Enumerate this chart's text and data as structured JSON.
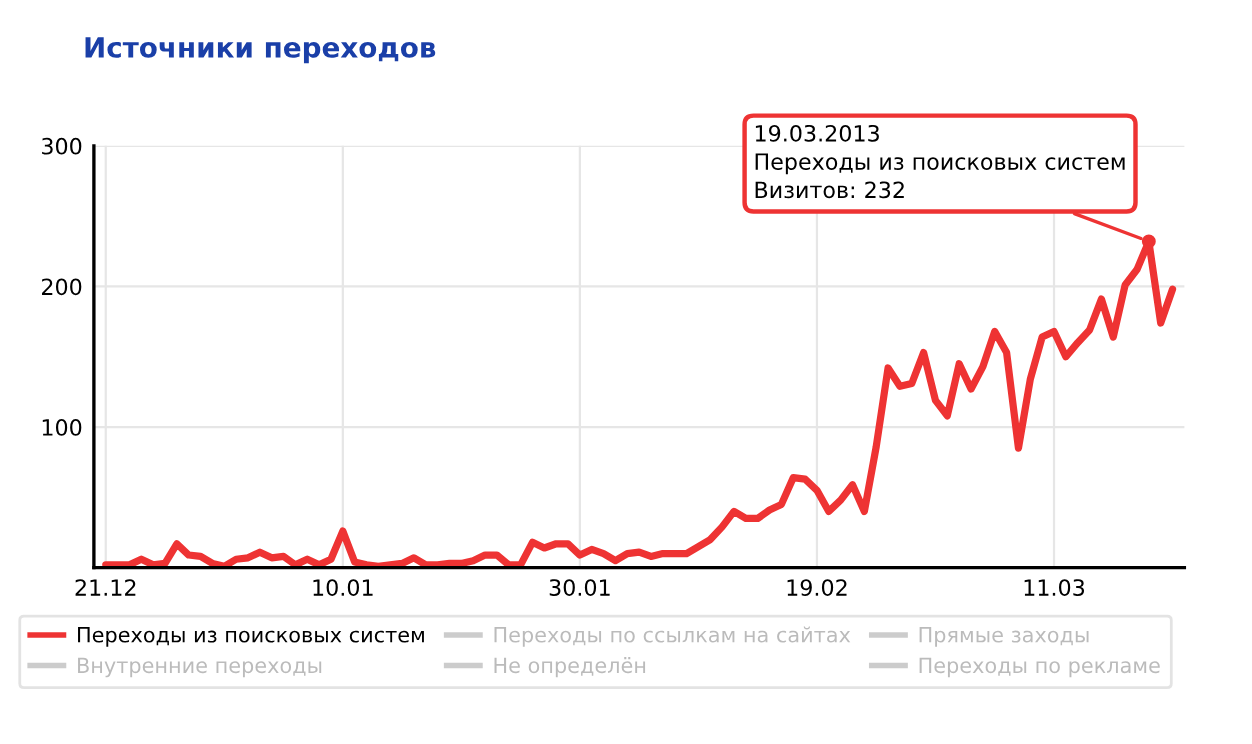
{
  "chart_data": {
    "type": "line",
    "title": "Источники переходов",
    "x": [
      "2012-12-21",
      "2012-12-22",
      "2012-12-23",
      "2012-12-24",
      "2012-12-25",
      "2012-12-26",
      "2012-12-27",
      "2012-12-28",
      "2012-12-29",
      "2012-12-30",
      "2012-12-31",
      "2013-01-01",
      "2013-01-02",
      "2013-01-03",
      "2013-01-04",
      "2013-01-05",
      "2013-01-06",
      "2013-01-07",
      "2013-01-08",
      "2013-01-09",
      "2013-01-10",
      "2013-01-11",
      "2013-01-12",
      "2013-01-13",
      "2013-01-14",
      "2013-01-15",
      "2013-01-16",
      "2013-01-17",
      "2013-01-18",
      "2013-01-19",
      "2013-01-20",
      "2013-01-21",
      "2013-01-22",
      "2013-01-23",
      "2013-01-24",
      "2013-01-25",
      "2013-01-26",
      "2013-01-27",
      "2013-01-28",
      "2013-01-29",
      "2013-01-30",
      "2013-01-31",
      "2013-02-01",
      "2013-02-02",
      "2013-02-03",
      "2013-02-04",
      "2013-02-05",
      "2013-02-06",
      "2013-02-07",
      "2013-02-08",
      "2013-02-09",
      "2013-02-10",
      "2013-02-11",
      "2013-02-12",
      "2013-02-13",
      "2013-02-14",
      "2013-02-15",
      "2013-02-16",
      "2013-02-17",
      "2013-02-18",
      "2013-02-19",
      "2013-02-20",
      "2013-02-21",
      "2013-02-22",
      "2013-02-23",
      "2013-02-24",
      "2013-02-25",
      "2013-02-26",
      "2013-02-27",
      "2013-02-28",
      "2013-03-01",
      "2013-03-02",
      "2013-03-03",
      "2013-03-04",
      "2013-03-05",
      "2013-03-06",
      "2013-03-07",
      "2013-03-08",
      "2013-03-09",
      "2013-03-10",
      "2013-03-11",
      "2013-03-12",
      "2013-03-13",
      "2013-03-14",
      "2013-03-15",
      "2013-03-16",
      "2013-03-17",
      "2013-03-18",
      "2013-03-19",
      "2013-03-20",
      "2013-03-21"
    ],
    "series": [
      {
        "name": "Переходы из поисковых систем",
        "color": "#ee3333",
        "values": [
          2,
          2,
          2,
          6,
          2,
          3,
          17,
          9,
          8,
          3,
          1,
          6,
          7,
          11,
          7,
          8,
          2,
          6,
          2,
          6,
          26,
          4,
          2,
          1,
          2,
          3,
          7,
          2,
          2,
          3,
          3,
          5,
          9,
          9,
          2,
          2,
          18,
          14,
          17,
          17,
          9,
          13,
          10,
          5,
          10,
          11,
          8,
          10,
          10,
          10,
          15,
          20,
          29,
          40,
          35,
          35,
          41,
          45,
          64,
          63,
          55,
          40,
          48,
          59,
          40,
          86,
          142,
          129,
          131,
          153,
          119,
          108,
          145,
          127,
          143,
          168,
          153,
          85,
          134,
          164,
          168,
          150,
          160,
          169,
          191,
          164,
          201,
          212,
          232,
          174,
          198
        ]
      },
      {
        "name": "Переходы по ссылкам на сайтах",
        "color": "#cccccc",
        "values": [
          null,
          null,
          null,
          null,
          null,
          null,
          null,
          null,
          null,
          null,
          null,
          null,
          null,
          null,
          null,
          null,
          null,
          null,
          null,
          null,
          null,
          null,
          null,
          null,
          null,
          null,
          null,
          null,
          null,
          null,
          null,
          null,
          null,
          null,
          null,
          null,
          null,
          null,
          null,
          null,
          null,
          null,
          null,
          null,
          null,
          null,
          null,
          null,
          null,
          null,
          null,
          null,
          null,
          null,
          null,
          null,
          null,
          null,
          null,
          null,
          null,
          null,
          null,
          null,
          null,
          null,
          null,
          null,
          null,
          null,
          null,
          null,
          null,
          null,
          null,
          null,
          null,
          null,
          null,
          null,
          null,
          null,
          null,
          null,
          null,
          null,
          null,
          null,
          null,
          null,
          null
        ]
      },
      {
        "name": "Прямые заходы",
        "color": "#cccccc",
        "values": [
          null,
          null,
          null,
          null,
          null,
          null,
          null,
          null,
          null,
          null,
          null,
          null,
          null,
          null,
          null,
          null,
          null,
          null,
          null,
          null,
          null,
          null,
          null,
          null,
          null,
          null,
          null,
          null,
          null,
          null,
          null,
          null,
          null,
          null,
          null,
          null,
          null,
          null,
          null,
          null,
          null,
          null,
          null,
          null,
          null,
          null,
          null,
          null,
          null,
          null,
          null,
          null,
          null,
          null,
          null,
          null,
          null,
          null,
          null,
          null,
          null,
          null,
          null,
          null,
          null,
          null,
          null,
          null,
          null,
          null,
          null,
          null,
          null,
          null,
          null,
          null,
          null,
          null,
          null,
          null,
          null,
          null,
          null,
          null,
          null,
          null,
          null,
          null,
          null,
          null,
          null
        ]
      },
      {
        "name": "Внутренние переходы",
        "color": "#cccccc",
        "values": [
          null,
          null,
          null,
          null,
          null,
          null,
          null,
          null,
          null,
          null,
          null,
          null,
          null,
          null,
          null,
          null,
          null,
          null,
          null,
          null,
          null,
          null,
          null,
          null,
          null,
          null,
          null,
          null,
          null,
          null,
          null,
          null,
          null,
          null,
          null,
          null,
          null,
          null,
          null,
          null,
          null,
          null,
          null,
          null,
          null,
          null,
          null,
          null,
          null,
          null,
          null,
          null,
          null,
          null,
          null,
          null,
          null,
          null,
          null,
          null,
          null,
          null,
          null,
          null,
          null,
          null,
          null,
          null,
          null,
          null,
          null,
          null,
          null,
          null,
          null,
          null,
          null,
          null,
          null,
          null,
          null,
          null,
          null,
          null,
          null,
          null,
          null,
          null,
          null,
          null,
          null
        ]
      },
      {
        "name": "Не определён",
        "color": "#cccccc",
        "values": [
          null,
          null,
          null,
          null,
          null,
          null,
          null,
          null,
          null,
          null,
          null,
          null,
          null,
          null,
          null,
          null,
          null,
          null,
          null,
          null,
          null,
          null,
          null,
          null,
          null,
          null,
          null,
          null,
          null,
          null,
          null,
          null,
          null,
          null,
          null,
          null,
          null,
          null,
          null,
          null,
          null,
          null,
          null,
          null,
          null,
          null,
          null,
          null,
          null,
          null,
          null,
          null,
          null,
          null,
          null,
          null,
          null,
          null,
          null,
          null,
          null,
          null,
          null,
          null,
          null,
          null,
          null,
          null,
          null,
          null,
          null,
          null,
          null,
          null,
          null,
          null,
          null,
          null,
          null,
          null,
          null,
          null,
          null,
          null,
          null,
          null,
          null,
          null,
          null,
          null,
          null
        ]
      },
      {
        "name": "Переходы по рекламе",
        "color": "#cccccc",
        "values": [
          null,
          null,
          null,
          null,
          null,
          null,
          null,
          null,
          null,
          null,
          null,
          null,
          null,
          null,
          null,
          null,
          null,
          null,
          null,
          null,
          null,
          null,
          null,
          null,
          null,
          null,
          null,
          null,
          null,
          null,
          null,
          null,
          null,
          null,
          null,
          null,
          null,
          null,
          null,
          null,
          null,
          null,
          null,
          null,
          null,
          null,
          null,
          null,
          null,
          null,
          null,
          null,
          null,
          null,
          null,
          null,
          null,
          null,
          null,
          null,
          null,
          null,
          null,
          null,
          null,
          null,
          null,
          null,
          null,
          null,
          null,
          null,
          null,
          null,
          null,
          null,
          null,
          null,
          null,
          null,
          null,
          null,
          null,
          null,
          null,
          null,
          null,
          null,
          null,
          null,
          null
        ]
      }
    ],
    "xlim": [
      "2012-12-20",
      "2013-03-22"
    ],
    "xticks": [
      {
        "value": "2012-12-21",
        "label": "21.12"
      },
      {
        "value": "2013-01-10",
        "label": "10.01"
      },
      {
        "value": "2013-01-30",
        "label": "30.01"
      },
      {
        "value": "2013-02-19",
        "label": "19.02"
      },
      {
        "value": "2013-03-11",
        "label": "11.03"
      }
    ],
    "ylim": [
      0,
      300
    ],
    "yticks": [
      100,
      200,
      300
    ],
    "grid": true,
    "legend": "bottom",
    "line_style": "solid",
    "annotations": [
      {
        "text": "19.03.2013\nПереходы из поисковых систем\nВизитов: 232",
        "x": "2013-03-19",
        "y": 232
      }
    ]
  }
}
